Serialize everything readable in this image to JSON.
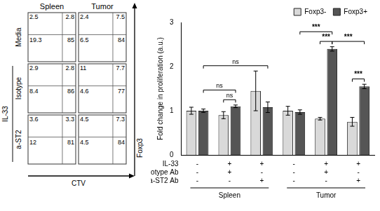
{
  "flow_panels": {
    "columns": [
      "Spleen",
      "Tumor"
    ],
    "x_label": "CTV",
    "y_label": "Foxp3",
    "rows": [
      {
        "label": "Media",
        "quadrants": [
          [
            2.5,
            2.8,
            19.3,
            85
          ],
          [
            2.4,
            7.5,
            6.5,
            84
          ]
        ]
      },
      {
        "group": "IL-33",
        "label": "Isotype",
        "quadrants": [
          [
            2.9,
            2.8,
            8.4,
            86
          ],
          [
            11,
            7.7,
            4.6,
            77
          ]
        ]
      },
      {
        "group": "IL-33",
        "label": "a-ST2",
        "quadrants": [
          [
            3.6,
            3.3,
            12,
            81
          ],
          [
            4.5,
            7.3,
            4.5,
            84
          ]
        ]
      }
    ]
  },
  "chart_data": {
    "type": "bar",
    "y_label": "Fold change in proliferation (a.u.)",
    "categories": [
      null,
      null,
      null,
      null,
      null,
      null
    ],
    "tissue": [
      "Spleen",
      "Spleen",
      "Spleen",
      "Tumor",
      "Tumor",
      "Tumor"
    ],
    "conditions": [
      {
        "label": "IL-33",
        "values": [
          "-",
          "+",
          "+",
          "-",
          "+",
          "+"
        ]
      },
      {
        "label": "Isotype Ab",
        "values": [
          "-",
          "+",
          "-",
          "-",
          "+",
          "-"
        ]
      },
      {
        "label": "a-ST2 Ab",
        "values": [
          "-",
          "-",
          "+",
          "-",
          "-",
          "+"
        ]
      }
    ],
    "series": [
      {
        "name": "Foxp3-",
        "color": "#d9d9d9",
        "values": [
          1.0,
          0.9,
          1.45,
          1.0,
          0.82,
          0.75
        ],
        "errors": [
          0.08,
          0.08,
          0.45,
          0.1,
          0.03,
          0.1
        ]
      },
      {
        "name": "Foxp3+",
        "color": "#555555",
        "values": [
          1.0,
          1.1,
          1.08,
          0.97,
          2.4,
          1.55
        ],
        "errors": [
          0.04,
          0.03,
          0.12,
          0.05,
          0.05,
          0.05
        ]
      }
    ],
    "ylim": [
      0,
      3
    ],
    "yticks": [
      0,
      1,
      2,
      3
    ],
    "grid": false,
    "legend": "upper right",
    "tick_labels": "y",
    "significance": [
      {
        "label": "ns",
        "from": [
          1,
          0
        ],
        "to": [
          1,
          1
        ]
      },
      {
        "label": "ns",
        "from": [
          0,
          1
        ],
        "to": [
          1,
          1
        ]
      },
      {
        "label": "ns",
        "from": [
          0,
          1
        ],
        "to": [
          2,
          1
        ]
      },
      {
        "label": "***",
        "from": [
          4,
          0
        ],
        "to": [
          4,
          1
        ]
      },
      {
        "label": "***",
        "from": [
          3,
          1
        ],
        "to": [
          4,
          1
        ]
      },
      {
        "label": "***",
        "from": [
          4,
          1
        ],
        "to": [
          5,
          1
        ]
      },
      {
        "label": "***",
        "from": [
          5,
          0
        ],
        "to": [
          5,
          1
        ]
      }
    ]
  }
}
